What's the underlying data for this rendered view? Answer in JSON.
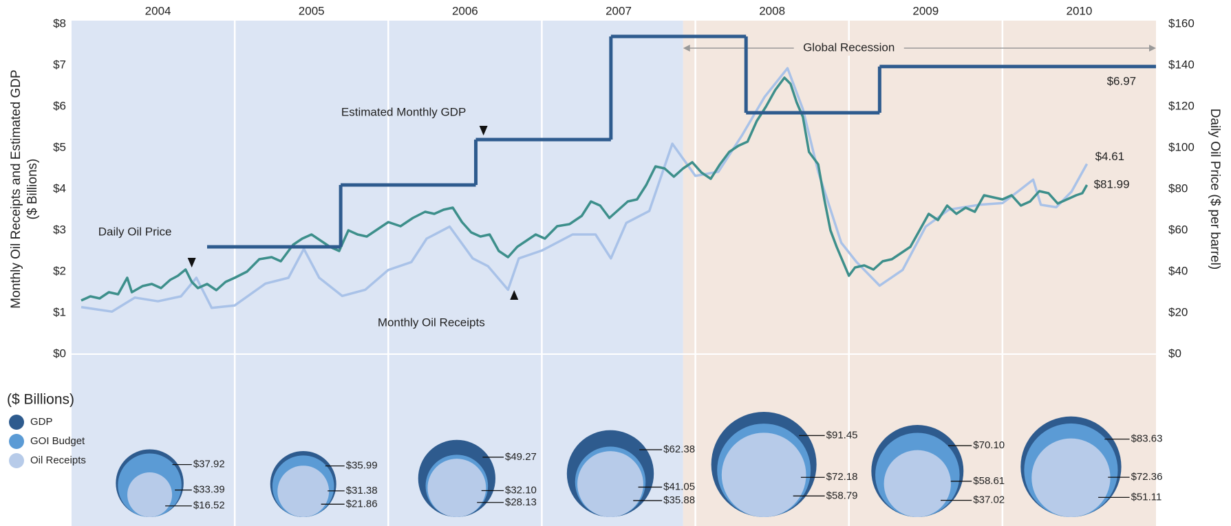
{
  "chart_data": {
    "type": "line",
    "years": [
      "2004",
      "2005",
      "2006",
      "2007",
      "2008",
      "2009",
      "2010"
    ],
    "xlim": [
      2004,
      2011
    ],
    "ylim": [
      0,
      8
    ],
    "yticks": [
      {
        "value": 0,
        "label": "$0"
      },
      {
        "value": 1,
        "label": "$1"
      },
      {
        "value": 2,
        "label": "$2"
      },
      {
        "value": 3,
        "label": "$3"
      },
      {
        "value": 4,
        "label": "$4"
      },
      {
        "value": 5,
        "label": "$5"
      },
      {
        "value": 6,
        "label": "$6"
      },
      {
        "value": 7,
        "label": "$7"
      },
      {
        "value": 8,
        "label": "$8"
      }
    ],
    "y2lim": [
      0,
      160
    ],
    "y2ticks": [
      {
        "value": 0,
        "label": "$0"
      },
      {
        "value": 20,
        "label": "$20"
      },
      {
        "value": 40,
        "label": "$40"
      },
      {
        "value": 60,
        "label": "$60"
      },
      {
        "value": 80,
        "label": "$80"
      },
      {
        "value": 100,
        "label": "$100"
      },
      {
        "value": 120,
        "label": "$120"
      },
      {
        "value": 140,
        "label": "$140"
      },
      {
        "value": 160,
        "label": "$160"
      }
    ],
    "ylabel": "Monthly Oil Receipts and Estimated GDP",
    "ylabel_sub": "($ Billions)",
    "y2label": "Daily Oil Price ($ per barrel)",
    "recession": {
      "label": "Global Recession",
      "start": 2007.92
    },
    "series": [
      {
        "name": "Daily Oil Price",
        "color": "#3d8f8b",
        "axis": "y2",
        "end_label": "$81.99",
        "x": [
          2004.0,
          2004.06,
          2004.12,
          2004.18,
          2004.24,
          2004.3,
          2004.33,
          2004.4,
          2004.46,
          2004.52,
          2004.58,
          2004.63,
          2004.68,
          2004.72,
          2004.76,
          2004.82,
          2004.88,
          2004.94,
          2005.0,
          2005.08,
          2005.16,
          2005.24,
          2005.3,
          2005.38,
          2005.44,
          2005.5,
          2005.56,
          2005.62,
          2005.68,
          2005.74,
          2005.8,
          2005.86,
          2005.92,
          2006.0,
          2006.08,
          2006.16,
          2006.24,
          2006.3,
          2006.36,
          2006.42,
          2006.48,
          2006.54,
          2006.6,
          2006.66,
          2006.72,
          2006.78,
          2006.84,
          2006.9,
          2006.96,
          2007.02,
          2007.1,
          2007.18,
          2007.26,
          2007.32,
          2007.38,
          2007.44,
          2007.5,
          2007.56,
          2007.62,
          2007.68,
          2007.74,
          2007.8,
          2007.86,
          2007.92,
          2007.98,
          2008.04,
          2008.1,
          2008.16,
          2008.22,
          2008.28,
          2008.34,
          2008.4,
          2008.46,
          2008.52,
          2008.58,
          2008.62,
          2008.66,
          2008.7,
          2008.74,
          2008.8,
          2008.84,
          2008.88,
          2008.92,
          2008.96,
          2009.0,
          2009.04,
          2009.1,
          2009.16,
          2009.22,
          2009.28,
          2009.34,
          2009.4,
          2009.46,
          2009.52,
          2009.58,
          2009.64,
          2009.7,
          2009.76,
          2009.82,
          2009.88,
          2009.94,
          2010.0,
          2010.06,
          2010.12,
          2010.18,
          2010.24,
          2010.3,
          2010.36,
          2010.42,
          2010.48,
          2010.52,
          2010.55
        ],
        "values": [
          26,
          28,
          27,
          30,
          29,
          37,
          30,
          33,
          34,
          32,
          36,
          38,
          41,
          35,
          32,
          34,
          31,
          35,
          37,
          40,
          46,
          47,
          45,
          53,
          56,
          58,
          55,
          52,
          50,
          60,
          58,
          57,
          60,
          64,
          62,
          66,
          69,
          68,
          70,
          71,
          64,
          59,
          57,
          58,
          50,
          47,
          52,
          55,
          58,
          56,
          62,
          63,
          67,
          74,
          72,
          66,
          70,
          74,
          75,
          82,
          91,
          90,
          86,
          90,
          93,
          88,
          85,
          92,
          98,
          101,
          103,
          113,
          120,
          128,
          134,
          131,
          122,
          115,
          98,
          92,
          75,
          60,
          52,
          45,
          38,
          42,
          43,
          41,
          45,
          46,
          49,
          52,
          60,
          68,
          65,
          72,
          68,
          71,
          69,
          77,
          76,
          75,
          77,
          72,
          74,
          79,
          78,
          73,
          75,
          77,
          78,
          81.99
        ]
      },
      {
        "name": "Monthly Oil Receipts",
        "color": "#a9c2e8",
        "end_label": "$4.61",
        "x": [
          2004.0,
          2004.2,
          2004.35,
          2004.5,
          2004.65,
          2004.75,
          2004.85,
          2005.0,
          2005.2,
          2005.35,
          2005.45,
          2005.55,
          2005.7,
          2005.85,
          2006.0,
          2006.15,
          2006.25,
          2006.4,
          2006.55,
          2006.65,
          2006.78,
          2006.85,
          2007.0,
          2007.2,
          2007.35,
          2007.45,
          2007.55,
          2007.7,
          2007.85,
          2008.0,
          2008.15,
          2008.3,
          2008.45,
          2008.6,
          2008.7,
          2008.8,
          2008.95,
          2009.05,
          2009.2,
          2009.35,
          2009.5,
          2009.65,
          2009.85,
          2010.0,
          2010.1,
          2010.2,
          2010.25,
          2010.35,
          2010.45,
          2010.55
        ],
        "values": [
          1.14,
          1.03,
          1.37,
          1.28,
          1.4,
          1.85,
          1.12,
          1.18,
          1.71,
          1.85,
          2.55,
          1.85,
          1.41,
          1.56,
          2.04,
          2.23,
          2.8,
          3.09,
          2.32,
          2.13,
          1.56,
          2.32,
          2.51,
          2.9,
          2.9,
          2.32,
          3.18,
          3.47,
          5.1,
          4.32,
          4.42,
          5.28,
          6.23,
          6.93,
          5.94,
          4.42,
          2.7,
          2.23,
          1.66,
          2.04,
          3.09,
          3.5,
          3.62,
          3.66,
          3.94,
          4.23,
          3.62,
          3.56,
          3.94,
          4.61
        ]
      },
      {
        "name": "Estimated Monthly GDP",
        "color": "#2e5b8e",
        "step": true,
        "end_label": "$6.97",
        "x": [
          2004.82,
          2005.69,
          2006.57,
          2007.45,
          2008.33,
          2009.2
        ],
        "values": [
          2.6,
          4.1,
          5.2,
          7.7,
          5.85,
          6.97
        ]
      }
    ],
    "bubbles": {
      "title": "($ Billions)",
      "series": [
        {
          "name": "GDP",
          "color": "#2e5b8e",
          "values": [
            37.92,
            35.99,
            49.27,
            62.38,
            91.45,
            70.1,
            83.63
          ],
          "value_labels": [
            "$37.92",
            "$35.99",
            "$49.27",
            "$62.38",
            "$91.45",
            "$70.10",
            "$83.63"
          ]
        },
        {
          "name": "GOI Budget",
          "color": "#5b9bd5",
          "values": [
            33.39,
            31.38,
            32.1,
            41.05,
            72.18,
            58.61,
            72.36
          ],
          "value_labels": [
            "$33.39",
            "$31.38",
            "$32.10",
            "$41.05",
            "$72.18",
            "$58.61",
            "$72.36"
          ]
        },
        {
          "name": "Oil Receipts",
          "color": "#b7cbe9",
          "values": [
            16.52,
            21.86,
            28.13,
            35.88,
            58.79,
            37.02,
            51.11
          ],
          "value_labels": [
            "$16.52",
            "$21.86",
            "$28.13",
            "$35.88",
            "$58.79",
            "$37.02",
            "$51.11"
          ]
        }
      ]
    }
  }
}
